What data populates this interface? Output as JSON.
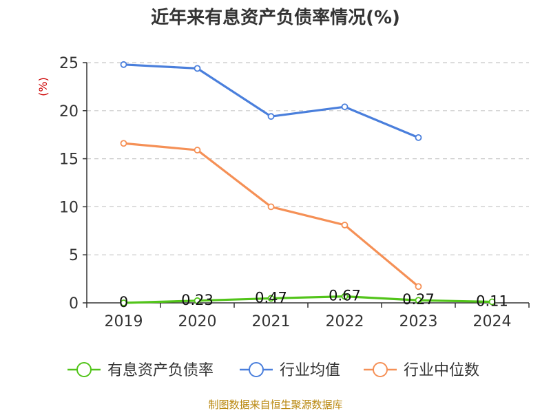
{
  "chart_data": {
    "type": "line",
    "title": "近年来有息资产负债率情况(%)",
    "ylabel": "(%)",
    "xlabel": "",
    "categories": [
      "2019",
      "2020",
      "2021",
      "2022",
      "2023",
      "2024"
    ],
    "ylim": [
      0,
      25
    ],
    "yticks": [
      0,
      5,
      10,
      15,
      20,
      25
    ],
    "grid": true,
    "legend_position": "bottom",
    "series": [
      {
        "name": "有息资产负债率",
        "color": "#52c41a",
        "values": [
          0,
          0.23,
          0.47,
          0.67,
          0.27,
          0.11
        ],
        "data_labels": [
          "0",
          "0.23",
          "0.47",
          "0.67",
          "0.27",
          "0.11"
        ]
      },
      {
        "name": "行业均值",
        "color": "#4a7fdc",
        "values": [
          24.8,
          24.4,
          19.4,
          20.4,
          17.2,
          null
        ]
      },
      {
        "name": "行业中位数",
        "color": "#f59056",
        "values": [
          16.6,
          15.9,
          10.0,
          8.1,
          1.7,
          null
        ]
      }
    ]
  },
  "source": "制图数据来自恒生聚源数据库"
}
